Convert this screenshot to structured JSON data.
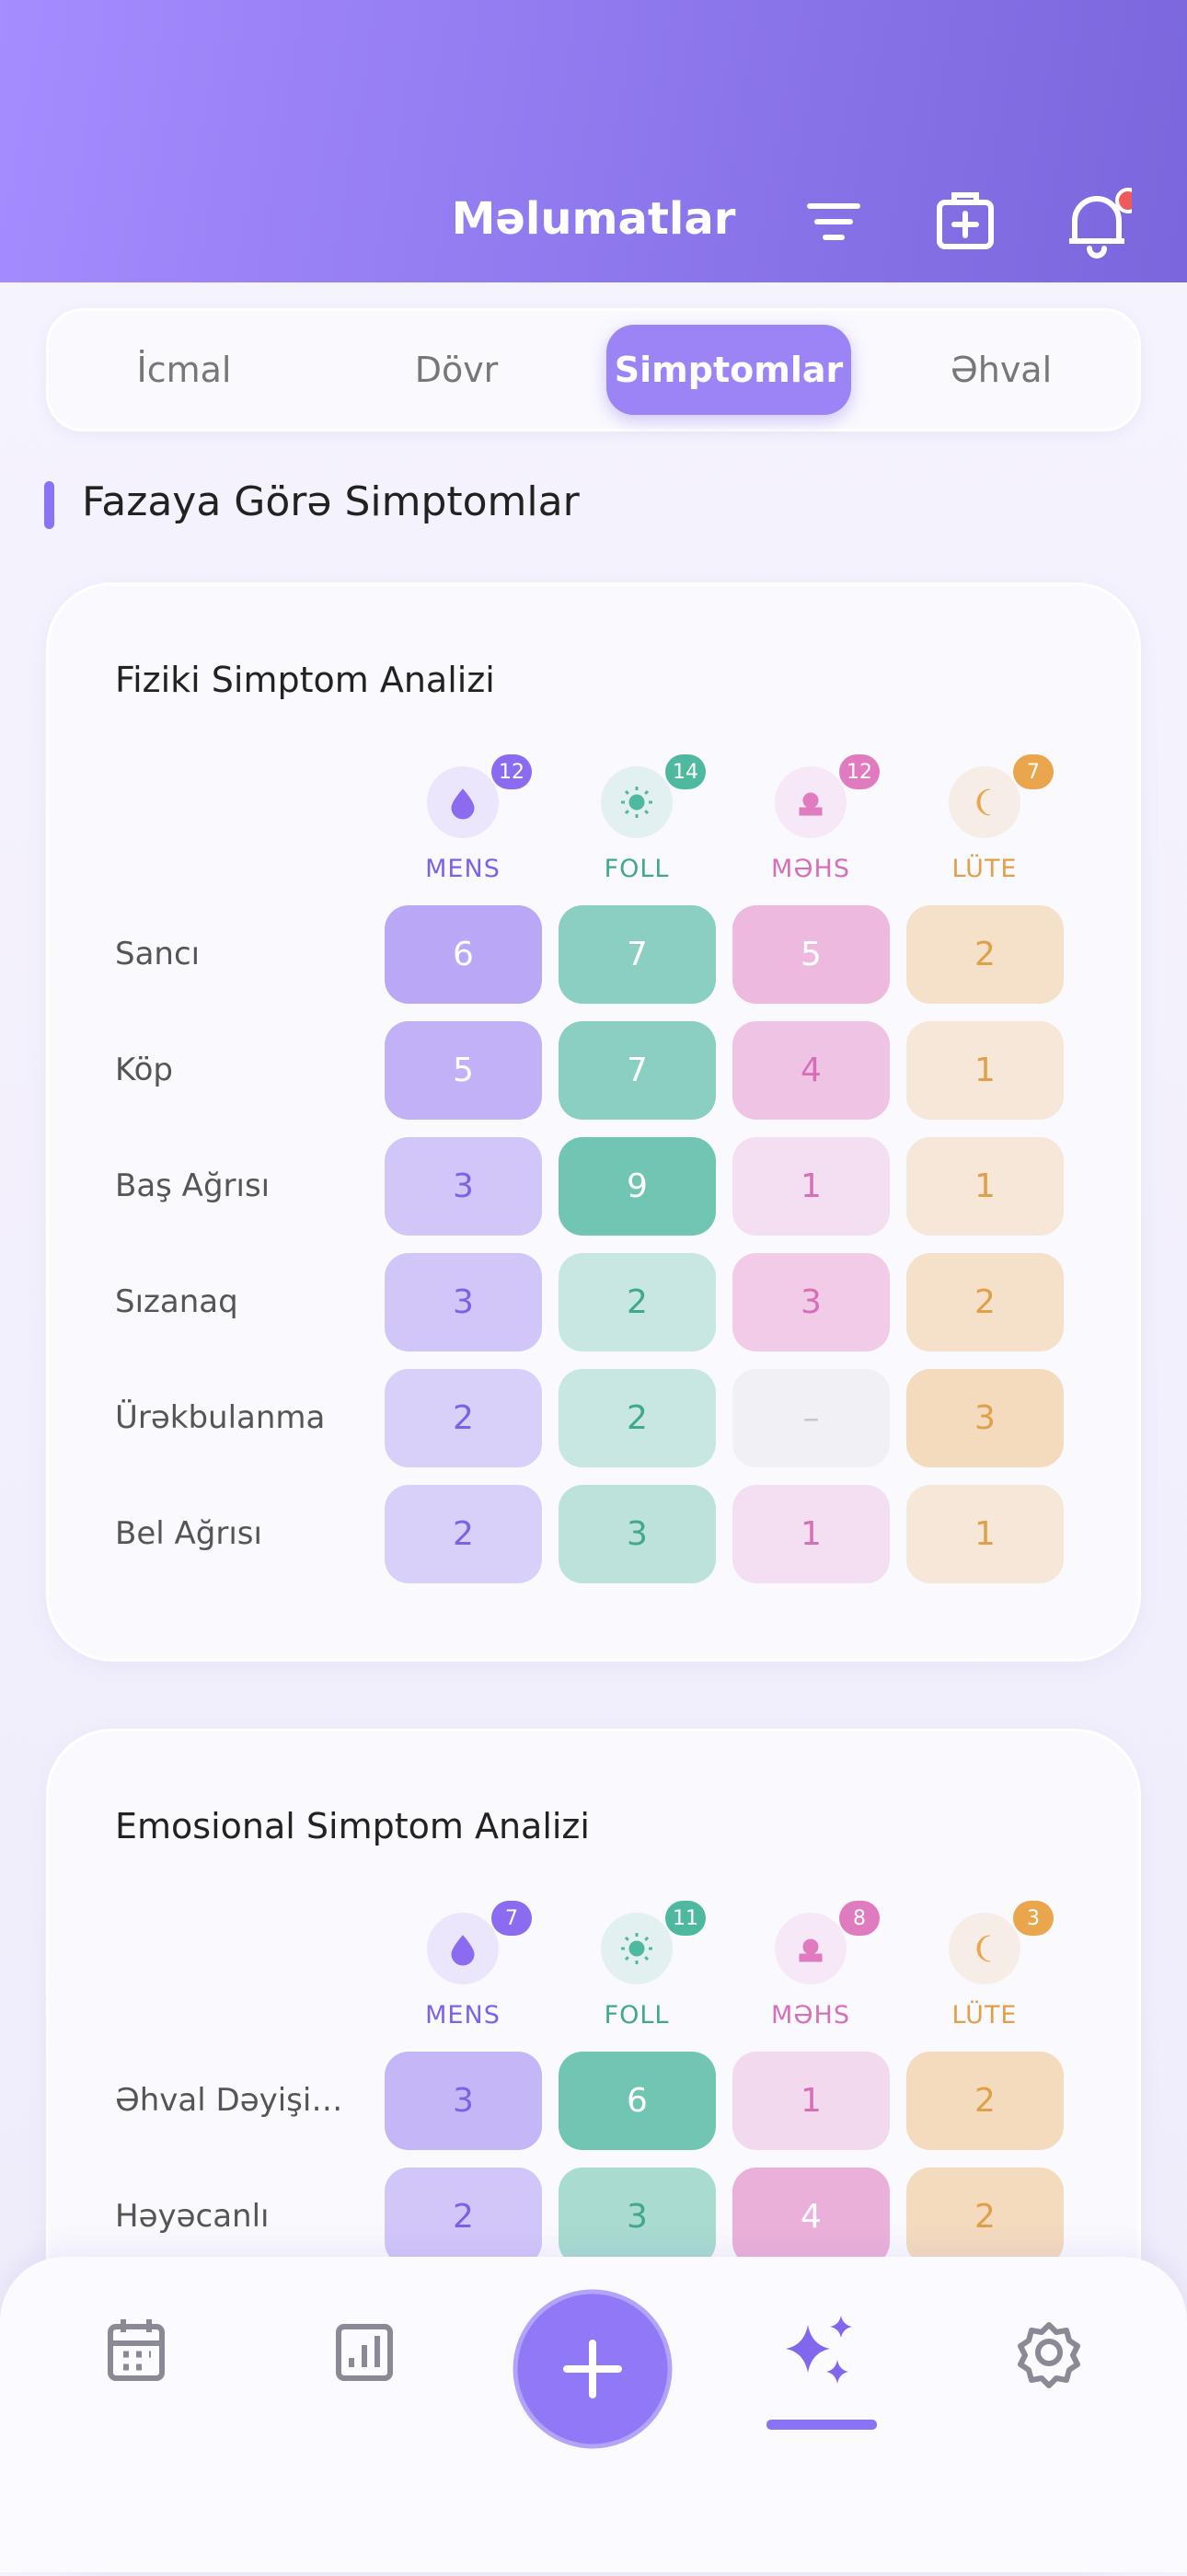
{
  "header": {
    "title": "Məlumatlar"
  },
  "tabs": {
    "items": [
      "İcmal",
      "Dövr",
      "Simptomlar",
      "Əhval"
    ],
    "active": 2
  },
  "section": {
    "title": "Fazaya Görə Simptomlar"
  },
  "cards": [
    {
      "title": "Fiziki Simptom Analizi",
      "phases": [
        {
          "label": "MENS",
          "count": 12
        },
        {
          "label": "FOLL",
          "count": 14
        },
        {
          "label": "MƏHS",
          "count": 12
        },
        {
          "label": "LÜTE",
          "count": 7
        }
      ],
      "rows": [
        {
          "label": "Sancı",
          "values": [
            6,
            7,
            5,
            2
          ]
        },
        {
          "label": "Köp",
          "values": [
            5,
            7,
            4,
            1
          ]
        },
        {
          "label": "Baş Ağrısı",
          "values": [
            3,
            9,
            1,
            1
          ]
        },
        {
          "label": "Sızanaq",
          "values": [
            3,
            2,
            3,
            2
          ]
        },
        {
          "label": "Ürəkbulanma",
          "values": [
            2,
            2,
            "–",
            3
          ]
        },
        {
          "label": "Bel Ağrısı",
          "values": [
            2,
            3,
            1,
            1
          ]
        }
      ]
    },
    {
      "title": "Emosional Simptom Analizi",
      "phases": [
        {
          "label": "MENS",
          "count": 7
        },
        {
          "label": "FOLL",
          "count": 11
        },
        {
          "label": "MƏHS",
          "count": 8
        },
        {
          "label": "LÜTE",
          "count": 3
        }
      ],
      "rows": [
        {
          "label": "Əhval Dəyişi…",
          "values": [
            3,
            6,
            1,
            2
          ]
        },
        {
          "label": "Həyəcanlı",
          "values": [
            2,
            3,
            4,
            2
          ]
        }
      ]
    }
  ]
}
